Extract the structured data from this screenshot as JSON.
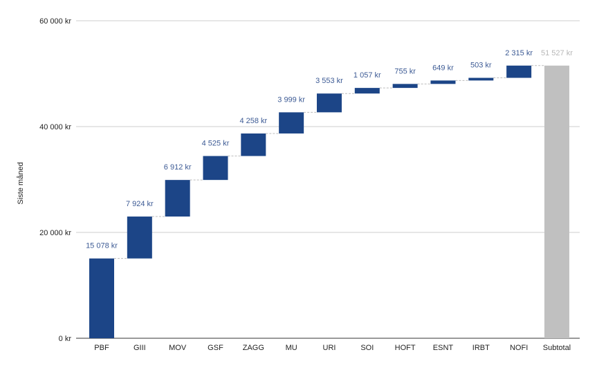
{
  "chart_data": {
    "type": "bar",
    "subtype": "waterfall",
    "ylabel": "Siste måned",
    "xlabel": "",
    "title": "",
    "ylim": [
      0,
      60000
    ],
    "y_ticks": [
      {
        "value": 0,
        "label": "0 kr"
      },
      {
        "value": 20000,
        "label": "20 000 kr"
      },
      {
        "value": 40000,
        "label": "40 000 kr"
      },
      {
        "value": 60000,
        "label": "60 000 kr"
      }
    ],
    "grid": true,
    "legend": "none",
    "categories": [
      "PBF",
      "GIII",
      "MOV",
      "GSF",
      "ZAGG",
      "MU",
      "URI",
      "SOI",
      "HOFT",
      "ESNT",
      "IRBT",
      "NOFI",
      "Subtotal"
    ],
    "values": [
      15078,
      7924,
      6912,
      4525,
      4258,
      3999,
      3553,
      1057,
      755,
      649,
      503,
      2315,
      51527
    ],
    "value_labels": [
      "15 078 kr",
      "7 924 kr",
      "6 912 kr",
      "4 525 kr",
      "4 258 kr",
      "3 999 kr",
      "3 553 kr",
      "1 057 kr",
      "755 kr",
      "649 kr",
      "503 kr",
      "2 315 kr",
      "51 527 kr"
    ],
    "is_total": [
      false,
      false,
      false,
      false,
      false,
      false,
      false,
      false,
      false,
      false,
      false,
      false,
      true
    ],
    "colors": {
      "increase": "#1c4587",
      "total": "#c0c0c0",
      "increase_label": "#3c5a94",
      "total_label": "#b7b7b7",
      "gridline": "#cccccc",
      "connector": "#bbbbbb"
    }
  }
}
